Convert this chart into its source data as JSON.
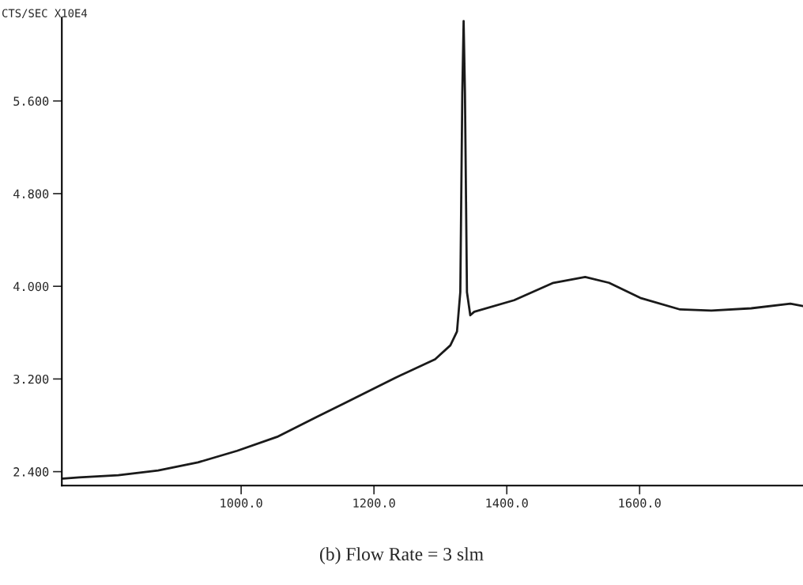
{
  "chart_data": {
    "type": "line",
    "ylabel": "CTS/SEC X10E4",
    "annotations": [
      "(b) Flow Rate = 3 slm"
    ],
    "x": [
      732,
      756,
      815,
      875,
      935,
      994,
      1054,
      1113,
      1173,
      1232,
      1292,
      1315,
      1325,
      1330,
      1333,
      1335,
      1337,
      1340,
      1345,
      1351,
      1411,
      1470,
      1518,
      1554,
      1601,
      1661,
      1708,
      1768,
      1827,
      1846
    ],
    "series": [
      {
        "color": "#1a1a1a",
        "values": [
          2.34,
          2.35,
          2.37,
          2.41,
          2.48,
          2.58,
          2.7,
          2.87,
          3.04,
          3.21,
          3.37,
          3.49,
          3.61,
          3.95,
          5.67,
          6.29,
          5.67,
          3.95,
          3.75,
          3.78,
          3.88,
          4.03,
          4.08,
          4.03,
          3.9,
          3.8,
          3.79,
          3.81,
          3.85,
          3.83
        ]
      }
    ],
    "xlim": [
      730,
      1846
    ],
    "ylim": [
      2.28,
      6.32
    ],
    "xticks": [
      {
        "value": 1000,
        "label": "1000.0"
      },
      {
        "value": 1200,
        "label": "1200.0"
      },
      {
        "value": 1400,
        "label": "1400.0"
      },
      {
        "value": 1600,
        "label": "1600.0"
      }
    ],
    "yticks": [
      {
        "value": 2.4,
        "label": "2.400"
      },
      {
        "value": 3.2,
        "label": "3.200"
      },
      {
        "value": 4.0,
        "label": "4.000"
      },
      {
        "value": 4.8,
        "label": "4.800"
      },
      {
        "value": 5.6,
        "label": "5.600"
      }
    ],
    "grid": false,
    "legend": false,
    "marker": "none",
    "line_style": "solid"
  }
}
